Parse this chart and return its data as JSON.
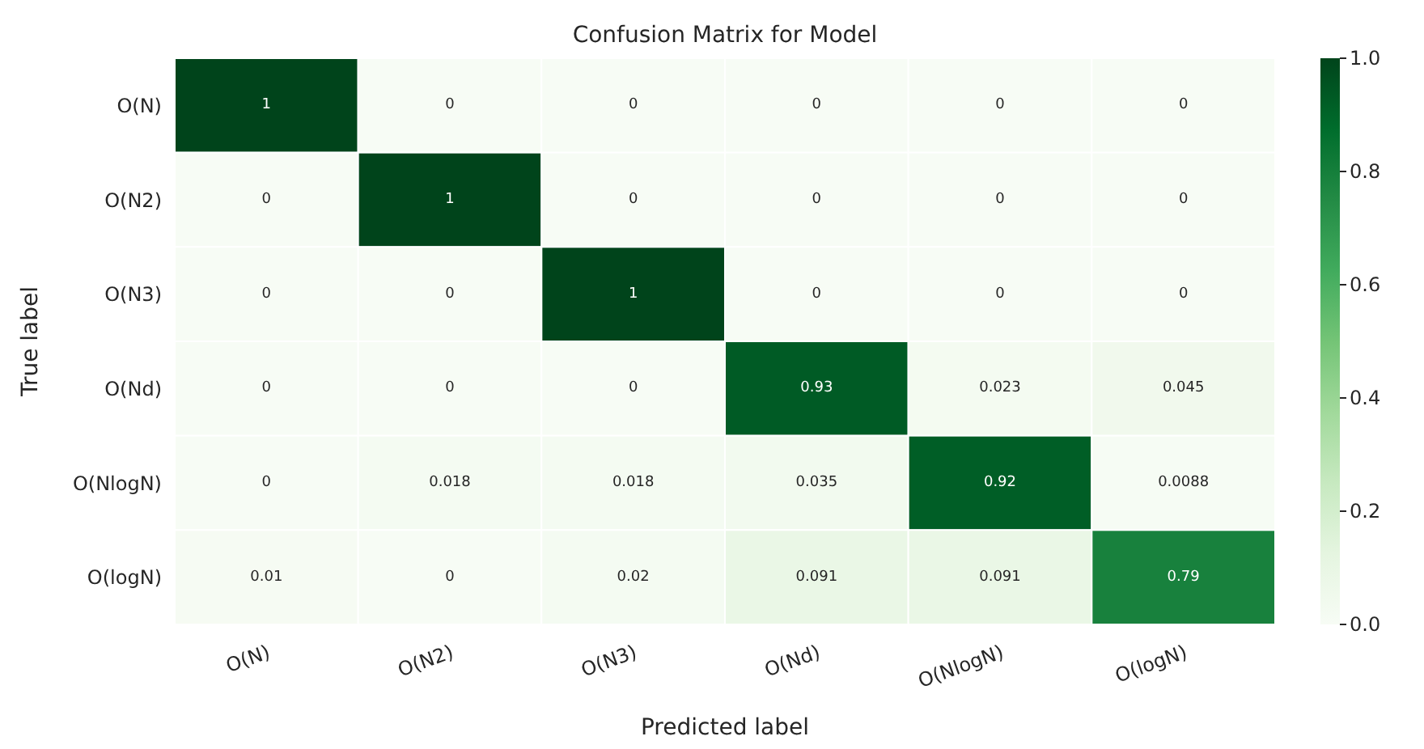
{
  "chart_data": {
    "type": "heatmap",
    "title": "Confusion Matrix for Model",
    "xlabel": "Predicted label",
    "ylabel": "True label",
    "categories": [
      "O(N)",
      "O(N2)",
      "O(N3)",
      "O(Nd)",
      "O(NlogN)",
      "O(logN)"
    ],
    "y_categories": [
      "O(N)",
      "O(N2)",
      "O(N3)",
      "O(Nd)",
      "O(NlogN)",
      "O(logN)"
    ],
    "cells": [
      [
        1,
        0,
        0,
        0,
        0,
        0
      ],
      [
        0,
        1,
        0,
        0,
        0,
        0
      ],
      [
        0,
        0,
        1,
        0,
        0,
        0
      ],
      [
        0,
        0,
        0,
        0.93,
        0.023,
        0.045
      ],
      [
        0,
        0.018,
        0.018,
        0.035,
        0.92,
        0.0088
      ],
      [
        0.01,
        0,
        0.02,
        0.091,
        0.091,
        0.79
      ]
    ],
    "data_labels": true,
    "clim": [
      0,
      1
    ],
    "cticks": [
      {
        "value": 0,
        "label": "0.0"
      },
      {
        "value": 0.2,
        "label": "0.2"
      },
      {
        "value": 0.4,
        "label": "0.4"
      },
      {
        "value": 0.6,
        "label": "0.6"
      },
      {
        "value": 0.8,
        "label": "0.8"
      },
      {
        "value": 1,
        "label": "1.0"
      }
    ]
  }
}
